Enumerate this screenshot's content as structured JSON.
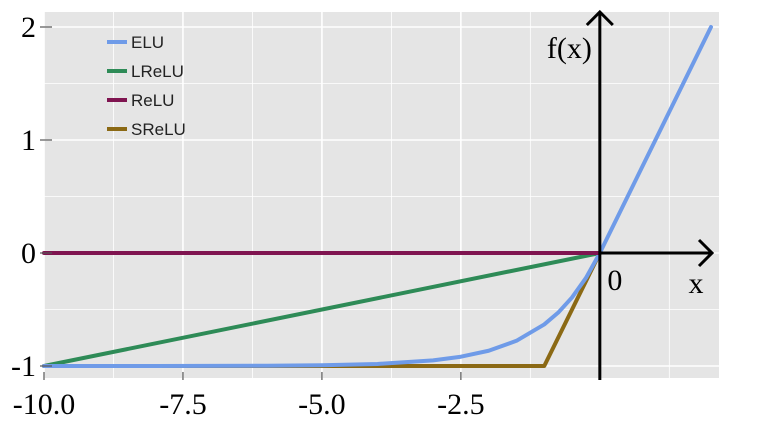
{
  "chart_data": {
    "type": "line",
    "xlim": [
      -10,
      2
    ],
    "ylim": [
      -1,
      2
    ],
    "grid": true,
    "legend_position": "top-left",
    "x_ticks": [
      {
        "value": -10,
        "label": "-10.0"
      },
      {
        "value": -7.5,
        "label": "-7.5"
      },
      {
        "value": -5,
        "label": "-5.0"
      },
      {
        "value": -2.5,
        "label": "-2.5"
      }
    ],
    "y_ticks": [
      {
        "value": 2,
        "label": "2"
      },
      {
        "value": 1,
        "label": "1"
      },
      {
        "value": 0,
        "label": "0"
      },
      {
        "value": -1,
        "label": "-1"
      }
    ],
    "origin_label": "0",
    "x_axis_label": "x",
    "y_axis_label": "f(x)",
    "series": [
      {
        "name": "ELU",
        "color": "#6f9be8",
        "x": [
          -10,
          -8,
          -6,
          -5,
          -4,
          -3,
          -2.5,
          -2,
          -1.5,
          -1,
          -0.75,
          -0.5,
          -0.25,
          0,
          1,
          2
        ],
        "y": [
          -1.0,
          -1.0,
          -0.998,
          -0.993,
          -0.982,
          -0.95,
          -0.918,
          -0.865,
          -0.777,
          -0.632,
          -0.528,
          -0.393,
          -0.221,
          0,
          1,
          2
        ]
      },
      {
        "name": "LReLU",
        "color": "#2e8b57",
        "x": [
          -10,
          0
        ],
        "y": [
          -1.0,
          0
        ]
      },
      {
        "name": "ReLU",
        "color": "#7f1450",
        "x": [
          -10,
          0
        ],
        "y": [
          0,
          0
        ]
      },
      {
        "name": "SReLU",
        "color": "#8b6914",
        "x": [
          -10,
          -1,
          0
        ],
        "y": [
          -1.0,
          -1.0,
          0
        ]
      }
    ]
  }
}
